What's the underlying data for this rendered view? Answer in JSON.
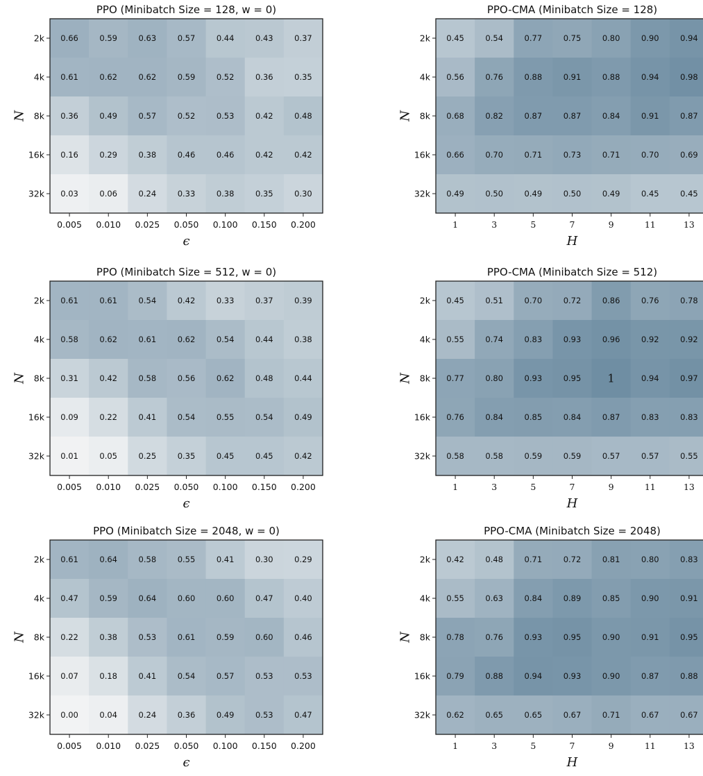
{
  "chart_data": [
    {
      "type": "heatmap",
      "title": "PPO (Minibatch Size = 128, w = 0)",
      "xlabel": "ϵ",
      "ylabel": "N",
      "x": [
        "0.005",
        "0.010",
        "0.025",
        "0.050",
        "0.100",
        "0.150",
        "0.200"
      ],
      "y": [
        "2k",
        "4k",
        "8k",
        "16k",
        "32k"
      ],
      "values": [
        [
          "0.66",
          "0.59",
          "0.63",
          "0.57",
          "0.44",
          "0.43",
          "0.37"
        ],
        [
          "0.61",
          "0.62",
          "0.62",
          "0.59",
          "0.52",
          "0.36",
          "0.35"
        ],
        [
          "0.36",
          "0.49",
          "0.57",
          "0.52",
          "0.53",
          "0.42",
          "0.48"
        ],
        [
          "0.16",
          "0.29",
          "0.38",
          "0.46",
          "0.46",
          "0.42",
          "0.42"
        ],
        [
          "0.03",
          "0.06",
          "0.24",
          "0.33",
          "0.38",
          "0.35",
          "0.30"
        ]
      ]
    },
    {
      "type": "heatmap",
      "title": "PPO-CMA (Minibatch Size = 128)",
      "xlabel": "H",
      "ylabel": "N",
      "x": [
        "1",
        "3",
        "5",
        "7",
        "9",
        "11",
        "13"
      ],
      "y": [
        "2k",
        "4k",
        "8k",
        "16k",
        "32k"
      ],
      "values": [
        [
          "0.45",
          "0.54",
          "0.77",
          "0.75",
          "0.80",
          "0.90",
          "0.94"
        ],
        [
          "0.56",
          "0.76",
          "0.88",
          "0.91",
          "0.88",
          "0.94",
          "0.98"
        ],
        [
          "0.68",
          "0.82",
          "0.87",
          "0.87",
          "0.84",
          "0.91",
          "0.87"
        ],
        [
          "0.66",
          "0.70",
          "0.71",
          "0.73",
          "0.71",
          "0.70",
          "0.69"
        ],
        [
          "0.49",
          "0.50",
          "0.49",
          "0.50",
          "0.49",
          "0.45",
          "0.45"
        ]
      ]
    },
    {
      "type": "heatmap",
      "title": "PPO (Minibatch Size = 512, w = 0)",
      "xlabel": "ϵ",
      "ylabel": "N",
      "x": [
        "0.005",
        "0.010",
        "0.025",
        "0.050",
        "0.100",
        "0.150",
        "0.200"
      ],
      "y": [
        "2k",
        "4k",
        "8k",
        "16k",
        "32k"
      ],
      "values": [
        [
          "0.61",
          "0.61",
          "0.54",
          "0.42",
          "0.33",
          "0.37",
          "0.39"
        ],
        [
          "0.58",
          "0.62",
          "0.61",
          "0.62",
          "0.54",
          "0.44",
          "0.38"
        ],
        [
          "0.31",
          "0.42",
          "0.58",
          "0.56",
          "0.62",
          "0.48",
          "0.44"
        ],
        [
          "0.09",
          "0.22",
          "0.41",
          "0.54",
          "0.55",
          "0.54",
          "0.49"
        ],
        [
          "0.01",
          "0.05",
          "0.25",
          "0.35",
          "0.45",
          "0.45",
          "0.42"
        ]
      ]
    },
    {
      "type": "heatmap",
      "title": "PPO-CMA (Minibatch Size = 512)",
      "xlabel": "H",
      "ylabel": "N",
      "x": [
        "1",
        "3",
        "5",
        "7",
        "9",
        "11",
        "13"
      ],
      "y": [
        "2k",
        "4k",
        "8k",
        "16k",
        "32k"
      ],
      "values": [
        [
          "0.45",
          "0.51",
          "0.70",
          "0.72",
          "0.86",
          "0.76",
          "0.78"
        ],
        [
          "0.55",
          "0.74",
          "0.83",
          "0.93",
          "0.96",
          "0.92",
          "0.92"
        ],
        [
          "0.77",
          "0.80",
          "0.93",
          "0.95",
          "1",
          "0.94",
          "0.97"
        ],
        [
          "0.76",
          "0.84",
          "0.85",
          "0.84",
          "0.87",
          "0.83",
          "0.83"
        ],
        [
          "0.58",
          "0.58",
          "0.59",
          "0.59",
          "0.57",
          "0.57",
          "0.55"
        ]
      ]
    },
    {
      "type": "heatmap",
      "title": "PPO (Minibatch Size = 2048, w = 0)",
      "xlabel": "ϵ",
      "ylabel": "N",
      "x": [
        "0.005",
        "0.010",
        "0.025",
        "0.050",
        "0.100",
        "0.150",
        "0.200"
      ],
      "y": [
        "2k",
        "4k",
        "8k",
        "16k",
        "32k"
      ],
      "values": [
        [
          "0.61",
          "0.64",
          "0.58",
          "0.55",
          "0.41",
          "0.30",
          "0.29"
        ],
        [
          "0.47",
          "0.59",
          "0.64",
          "0.60",
          "0.60",
          "0.47",
          "0.40"
        ],
        [
          "0.22",
          "0.38",
          "0.53",
          "0.61",
          "0.59",
          "0.60",
          "0.46"
        ],
        [
          "0.07",
          "0.18",
          "0.41",
          "0.54",
          "0.57",
          "0.53",
          "0.53"
        ],
        [
          "0.00",
          "0.04",
          "0.24",
          "0.36",
          "0.49",
          "0.53",
          "0.47"
        ]
      ]
    },
    {
      "type": "heatmap",
      "title": "PPO-CMA (Minibatch Size = 2048)",
      "xlabel": "H",
      "ylabel": "N",
      "x": [
        "1",
        "3",
        "5",
        "7",
        "9",
        "11",
        "13"
      ],
      "y": [
        "2k",
        "4k",
        "8k",
        "16k",
        "32k"
      ],
      "values": [
        [
          "0.42",
          "0.48",
          "0.71",
          "0.72",
          "0.81",
          "0.80",
          "0.83"
        ],
        [
          "0.55",
          "0.63",
          "0.84",
          "0.89",
          "0.85",
          "0.90",
          "0.91"
        ],
        [
          "0.78",
          "0.76",
          "0.93",
          "0.95",
          "0.90",
          "0.91",
          "0.95"
        ],
        [
          "0.79",
          "0.88",
          "0.94",
          "0.93",
          "0.90",
          "0.87",
          "0.88"
        ],
        [
          "0.62",
          "0.65",
          "0.65",
          "0.67",
          "0.71",
          "0.67",
          "0.67"
        ]
      ]
    }
  ],
  "colors": {
    "low": "#f2f3f4",
    "high": "#6f8ea3",
    "frame": "#222222",
    "text": "#111111"
  }
}
